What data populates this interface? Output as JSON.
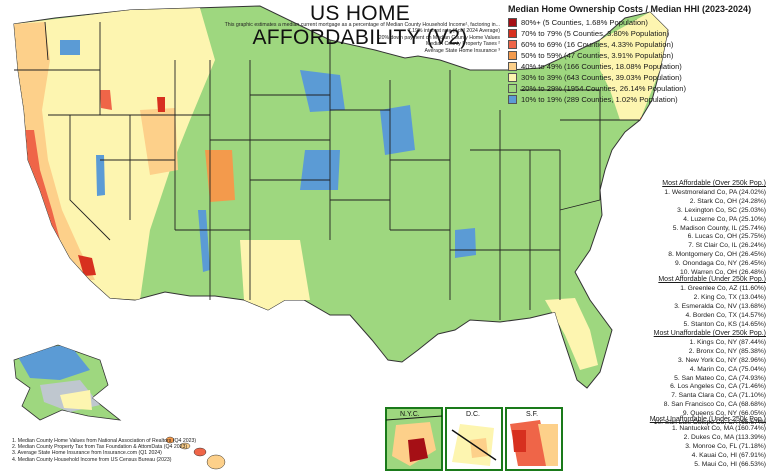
{
  "title": "US HOME AFFORDABILITY (V2)",
  "notes": [
    "This graphic estimates a median current mortgage as a percentage of Median County Household Income¹, factoring in...",
    "7.19% interest rate (April 2024 Average)",
    "20% down payment on Median County Home Values",
    "Median County Property Taxes ²",
    "Average State Home Insurance ³"
  ],
  "legend": {
    "title": "Median Home Ownership Costs / Median HHI (2023-2024)",
    "items": [
      {
        "label": "80%+ (5 Counties, 1.68% Population)",
        "color": "#a50f15"
      },
      {
        "label": "70% to 79% (5 Counties, 3.80% Population)",
        "color": "#d7301f"
      },
      {
        "label": "60% to 69% (16 Counties, 4.33% Population)",
        "color": "#ef6548"
      },
      {
        "label": "50% to 59% (47 Counties, 3.91% Population)",
        "color": "#f39a4c"
      },
      {
        "label": "40% to 49% (166 Counties, 18.08% Population)",
        "color": "#fdd08a"
      },
      {
        "label": "30% to 39% (643 Counties, 39.03% Population)",
        "color": "#fdf5b0"
      },
      {
        "label": "20% to 29% (1954 Counties, 26.14% Population)",
        "color": "#9ed77f"
      },
      {
        "label": "10% to 19% (289 Counties, 1.02% Population)",
        "color": "#5b9bd5"
      }
    ]
  },
  "rankings": [
    {
      "title": "Most Affordable (Over 250k Pop.)",
      "items": [
        "1. Westmoreland Co, PA (24.02%)",
        "2. Stark Co, OH (24.28%)",
        "3. Lexington Co, SC (25.03%)",
        "4. Luzerne Co, PA (25.10%)",
        "5. Madison County, IL (25.74%)",
        "6. Lucas Co, OH (25.75%)",
        "7. St Clair Co, IL (26.24%)",
        "8. Montgomery Co, OH (26.45%)",
        "9. Onondaga Co, NY (26.45%)",
        "10. Warren Co, OH (26.48%)"
      ]
    },
    {
      "title": "Most Affordable (Under 250k Pop.)",
      "items": [
        "1. Greenlee Co, AZ (11.60%)",
        "2. King Co, TX (13.04%)",
        "3. Esmeralda Co, NV (13.68%)",
        "4. Borden Co, TX (14.57%)",
        "5. Stanton Co, KS (14.65%)"
      ]
    },
    {
      "title": "Most Unaffordable (Over 250k Pop.)",
      "items": [
        "1. Kings Co, NY (87.44%)",
        "2. Bronx Co, NY (85.38%)",
        "3. New York Co, NY (82.96%)",
        "4. Marin Co, CA (75.04%)",
        "5. San Mateo Co, CA (74.93%)",
        "6. Los Angeles Co, CA (71.46%)",
        "7. Santa Clara Co, CA (71.10%)",
        "8. San Francisco Co, CA (68.68%)",
        "9. Queens Co, NY (66.05%)",
        "10. San Luis Obispo Co, CA (65.67%)"
      ]
    },
    {
      "title": "Most Unaffordable (Under 250k Pop.)",
      "items": [
        "1. Nantucket Co, MA (160.74%)",
        "2. Dukes Co, MA (113.39%)",
        "3. Monroe Co, FL (71.18%)",
        "4. Kauai Co, HI (67.91%)",
        "5. Maui Co, HI (66.53%)"
      ]
    }
  ],
  "insets": [
    "N.Y.C.",
    "D.C.",
    "S.F."
  ],
  "sources": [
    "1. Median County Home Values from National  Association of Realtors (Q4 2023)",
    "2. Median County Property Tax from Tax Foundation & AttomData (Q4 2023)",
    "3. Average State Home Insurance from Insurance.com (Q1 2024)",
    "4. Median County Household Income from US Census Bureau (2023)"
  ]
}
